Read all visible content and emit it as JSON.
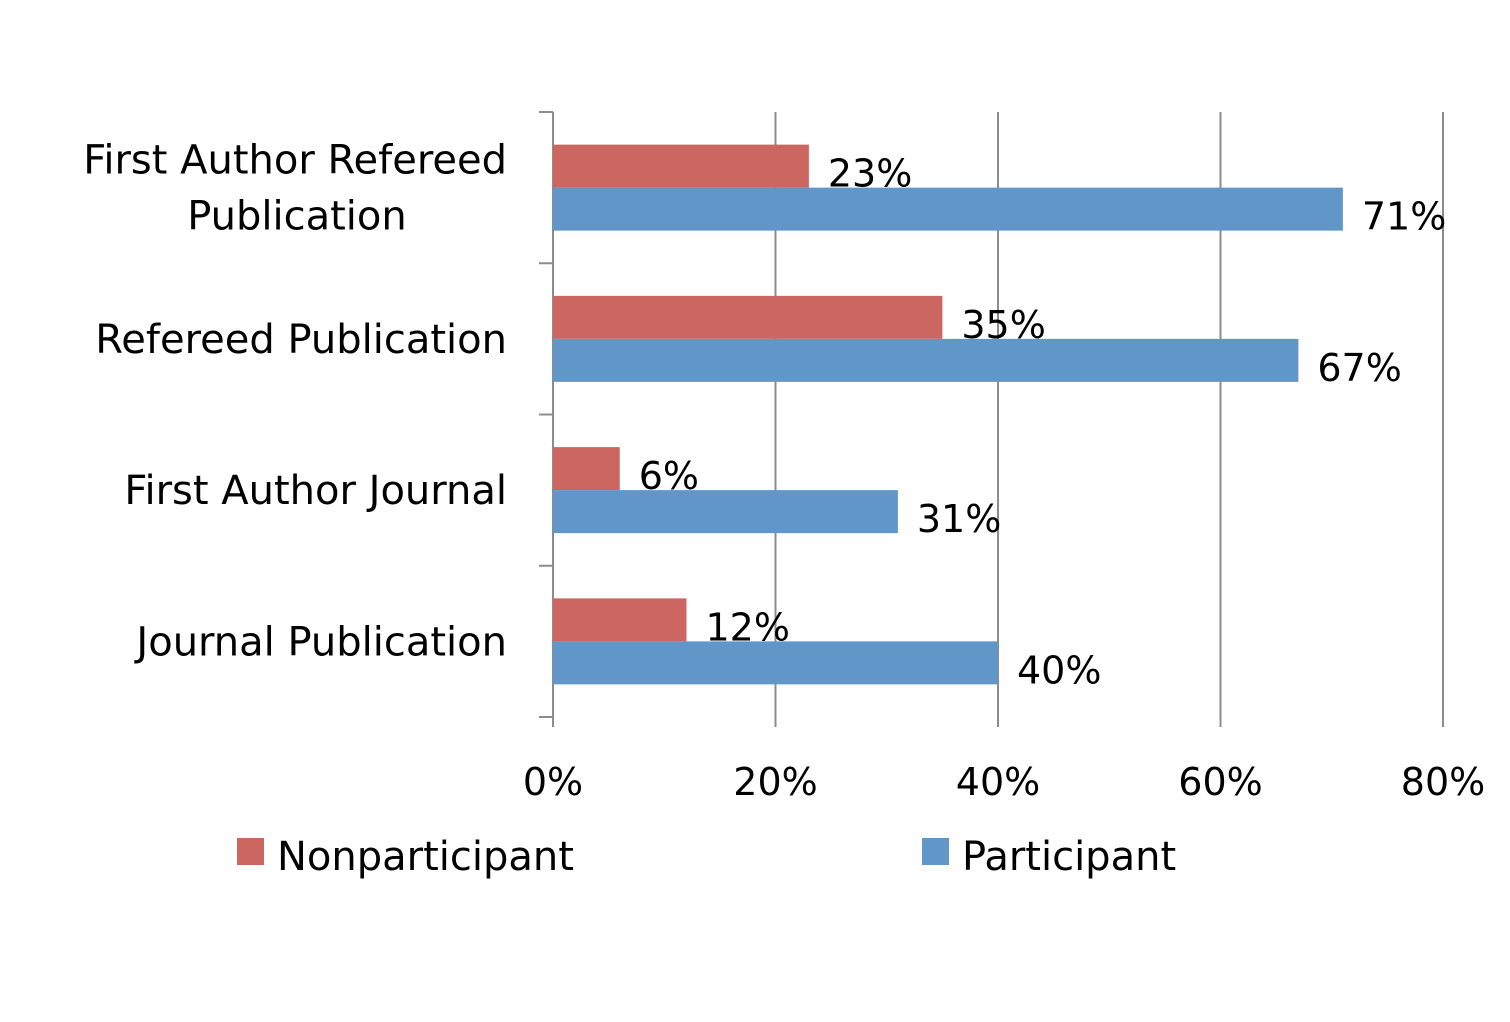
{
  "chart_data": {
    "type": "bar",
    "orientation": "horizontal",
    "categories": [
      "First Author Refereed Publication",
      "Refereed Publication",
      "First Author Journal",
      "Journal Publication"
    ],
    "category_label_lines": [
      [
        "First Author Refereed",
        "Publication"
      ],
      [
        "Refereed Publication"
      ],
      [
        "First Author Journal"
      ],
      [
        "Journal Publication"
      ]
    ],
    "series": [
      {
        "name": "Nonparticipant",
        "color": "#cc6660",
        "values": [
          23,
          35,
          6,
          12
        ],
        "labels": [
          "23%",
          "35%",
          "6%",
          "12%"
        ]
      },
      {
        "name": "Participant",
        "color": "#6196c9",
        "values": [
          71,
          67,
          31,
          40
        ],
        "labels": [
          "71%",
          "67%",
          "31%",
          "40%"
        ]
      }
    ],
    "xlim": [
      0,
      80
    ],
    "x_ticks": [
      0,
      20,
      40,
      60,
      80
    ],
    "x_tick_labels": [
      "0%",
      "20%",
      "40%",
      "60%",
      "80%"
    ],
    "grid": true,
    "legend_position": "bottom",
    "title": "",
    "xlabel": "",
    "ylabel": ""
  }
}
